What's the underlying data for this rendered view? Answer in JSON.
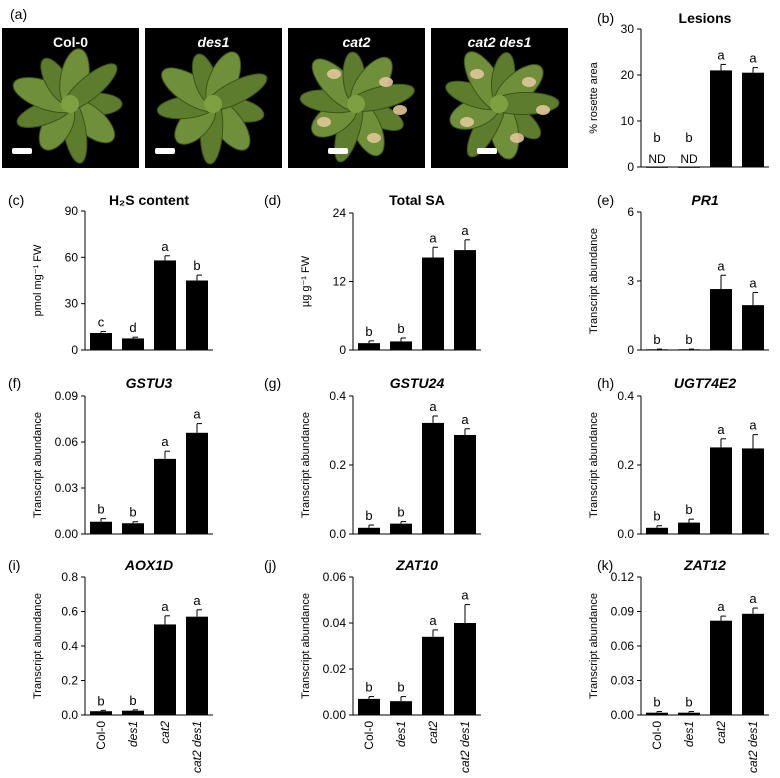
{
  "photo_panel": {
    "letter": "(a)",
    "photos": [
      {
        "label": "Col-0",
        "italic": false,
        "lesions": false
      },
      {
        "label": "des1",
        "italic": true,
        "lesions": false
      },
      {
        "label": "cat2",
        "italic": true,
        "lesions": true
      },
      {
        "label": "cat2 des1",
        "italic": true,
        "lesions": true
      }
    ]
  },
  "colors": {
    "bar": "#000000",
    "photo_background": "#000000",
    "leaf": "#6f8f3a",
    "lesion": "#e0c79a"
  },
  "chart_data": [
    {
      "letter": "(b)",
      "type": "bar",
      "title": "Lesions",
      "title_italic": false,
      "ylabel": "% rosette area",
      "ylim": [
        0,
        30
      ],
      "ticks": [
        "0",
        "10",
        "20",
        "30"
      ],
      "categories": [
        "Col-0",
        "des1",
        "cat2",
        "cat2 des1"
      ],
      "show_x_labels": false,
      "values": [
        0,
        0,
        21,
        20.5
      ],
      "errors": [
        0,
        0,
        1.3,
        1.1
      ],
      "letters": [
        "b",
        "b",
        "a",
        "a"
      ],
      "value_notes": [
        "ND",
        "ND",
        "",
        ""
      ]
    },
    {
      "letter": "(c)",
      "type": "bar",
      "title": "H₂S content",
      "title_italic": false,
      "ylabel": "pmol mg⁻¹ FW",
      "ylim": [
        0,
        90
      ],
      "ticks": [
        "0",
        "30",
        "60",
        "90"
      ],
      "categories": [
        "Col-0",
        "des1",
        "cat2",
        "cat2 des1"
      ],
      "show_x_labels": false,
      "values": [
        11,
        7.5,
        58,
        45
      ],
      "errors": [
        1,
        0.8,
        3,
        3.5
      ],
      "letters": [
        "c",
        "d",
        "a",
        "b"
      ],
      "value_notes": [
        "",
        "",
        "",
        ""
      ]
    },
    {
      "letter": "(d)",
      "type": "bar",
      "title": "Total SA",
      "title_italic": false,
      "ylabel": "µg g⁻¹ FW",
      "ylim": [
        0,
        24
      ],
      "ticks": [
        "0",
        "12",
        "24"
      ],
      "categories": [
        "Col-0",
        "des1",
        "cat2",
        "cat2 des1"
      ],
      "show_x_labels": false,
      "values": [
        1.2,
        1.5,
        16.2,
        17.5
      ],
      "errors": [
        0.4,
        0.6,
        1.8,
        1.8
      ],
      "letters": [
        "b",
        "b",
        "a",
        "a"
      ],
      "value_notes": [
        "",
        "",
        "",
        ""
      ]
    },
    {
      "letter": "(e)",
      "type": "bar",
      "title": "PR1",
      "title_italic": true,
      "ylabel": "Transcript abundance",
      "ylim": [
        0,
        6
      ],
      "ticks": [
        "0",
        "3",
        "6"
      ],
      "categories": [
        "Col-0",
        "des1",
        "cat2",
        "cat2 des1"
      ],
      "show_x_labels": false,
      "values": [
        0.03,
        0.03,
        2.65,
        1.95
      ],
      "errors": [
        0.01,
        0.01,
        0.6,
        0.55
      ],
      "letters": [
        "b",
        "b",
        "a",
        "a"
      ],
      "value_notes": [
        "",
        "",
        "",
        ""
      ]
    },
    {
      "letter": "(f)",
      "type": "bar",
      "title": "GSTU3",
      "title_italic": true,
      "ylabel": "Transcript abundance",
      "ylim": [
        0,
        0.09
      ],
      "ticks": [
        "0.00",
        "0.03",
        "0.06",
        "0.09"
      ],
      "categories": [
        "Col-0",
        "des1",
        "cat2",
        "cat2 des1"
      ],
      "show_x_labels": false,
      "values": [
        0.008,
        0.007,
        0.049,
        0.066
      ],
      "errors": [
        0.002,
        0.001,
        0.005,
        0.006
      ],
      "letters": [
        "b",
        "b",
        "a",
        "a"
      ],
      "value_notes": [
        "",
        "",
        "",
        ""
      ]
    },
    {
      "letter": "(g)",
      "type": "bar",
      "title": "GSTU24",
      "title_italic": true,
      "ylabel": "Transcript abundance",
      "ylim": [
        0,
        0.4
      ],
      "ticks": [
        "0.0",
        "0.2",
        "0.4"
      ],
      "categories": [
        "Col-0",
        "des1",
        "cat2",
        "cat2 des1"
      ],
      "show_x_labels": false,
      "values": [
        0.018,
        0.03,
        0.322,
        0.287
      ],
      "errors": [
        0.008,
        0.006,
        0.02,
        0.018
      ],
      "letters": [
        "b",
        "b",
        "a",
        "a"
      ],
      "value_notes": [
        "",
        "",
        "",
        ""
      ]
    },
    {
      "letter": "(h)",
      "type": "bar",
      "title": "UGT74E2",
      "title_italic": true,
      "ylabel": "Transcript abundance",
      "ylim": [
        0,
        0.4
      ],
      "ticks": [
        "0.0",
        "0.2",
        "0.4"
      ],
      "categories": [
        "Col-0",
        "des1",
        "cat2",
        "cat2 des1"
      ],
      "show_x_labels": false,
      "values": [
        0.018,
        0.033,
        0.251,
        0.248
      ],
      "errors": [
        0.006,
        0.01,
        0.025,
        0.04
      ],
      "letters": [
        "b",
        "b",
        "a",
        "a"
      ],
      "value_notes": [
        "",
        "",
        "",
        ""
      ]
    },
    {
      "letter": "(i)",
      "type": "bar",
      "title": "AOX1D",
      "title_italic": true,
      "ylabel": "Transcript abundance",
      "ylim": [
        0,
        0.8
      ],
      "ticks": [
        "0.0",
        "0.2",
        "0.4",
        "0.6",
        "0.8"
      ],
      "categories": [
        "Col-0",
        "des1",
        "cat2",
        "cat2 des1"
      ],
      "show_x_labels": true,
      "values": [
        0.022,
        0.025,
        0.525,
        0.57
      ],
      "errors": [
        0.005,
        0.005,
        0.05,
        0.04
      ],
      "letters": [
        "b",
        "b",
        "a",
        "a"
      ],
      "value_notes": [
        "",
        "",
        "",
        ""
      ]
    },
    {
      "letter": "(j)",
      "type": "bar",
      "title": "ZAT10",
      "title_italic": true,
      "ylabel": "Transcript abundance",
      "ylim": [
        0,
        0.06
      ],
      "ticks": [
        "0.00",
        "0.02",
        "0.04",
        "0.06"
      ],
      "categories": [
        "Col-0",
        "des1",
        "cat2",
        "cat2 des1"
      ],
      "show_x_labels": true,
      "values": [
        0.007,
        0.006,
        0.034,
        0.04
      ],
      "errors": [
        0.001,
        0.002,
        0.003,
        0.008
      ],
      "letters": [
        "b",
        "b",
        "a",
        "a"
      ],
      "value_notes": [
        "",
        "",
        "",
        ""
      ]
    },
    {
      "letter": "(k)",
      "type": "bar",
      "title": "ZAT12",
      "title_italic": true,
      "ylabel": "Transcript abundance",
      "ylim": [
        0,
        0.12
      ],
      "ticks": [
        "0.00",
        "0.03",
        "0.06",
        "0.09",
        "0.12"
      ],
      "categories": [
        "Col-0",
        "des1",
        "cat2",
        "cat2 des1"
      ],
      "show_x_labels": true,
      "values": [
        0.002,
        0.002,
        0.082,
        0.088
      ],
      "errors": [
        0.001,
        0.001,
        0.004,
        0.005
      ],
      "letters": [
        "b",
        "b",
        "a",
        "a"
      ],
      "value_notes": [
        "",
        "",
        "",
        ""
      ]
    }
  ]
}
